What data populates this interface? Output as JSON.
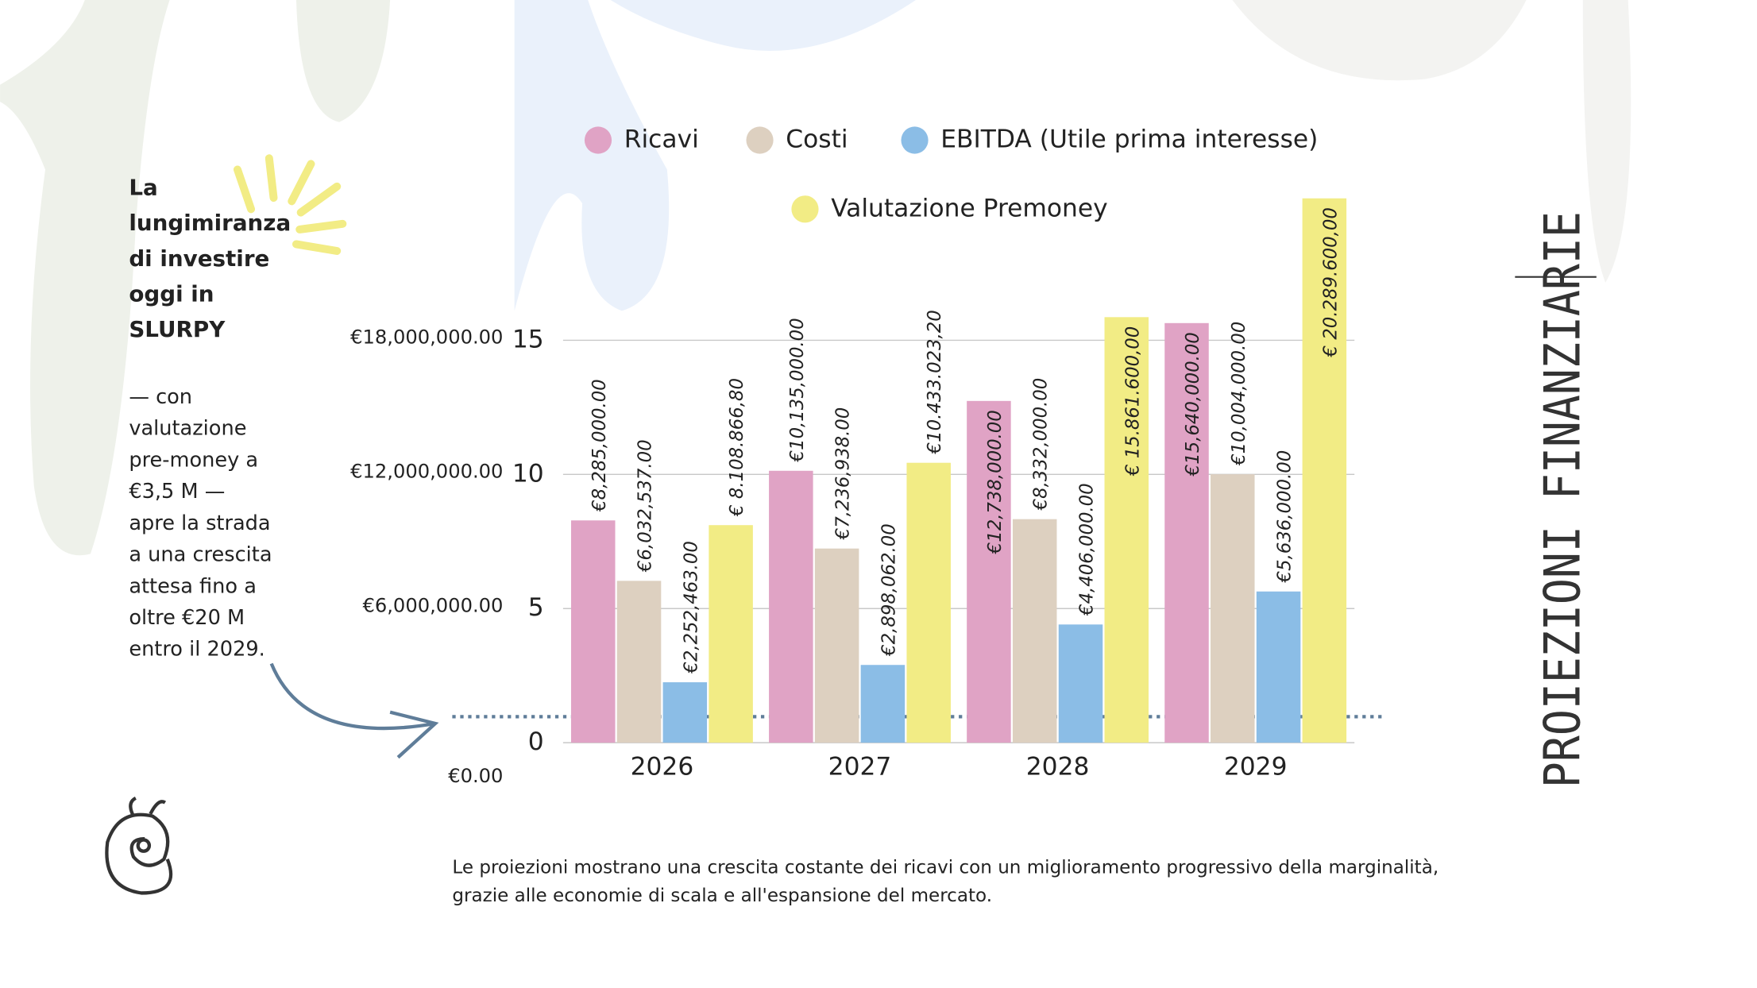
{
  "chart_data": {
    "type": "bar",
    "categories": [
      "2026",
      "2027",
      "2028",
      "2029"
    ],
    "series": [
      {
        "name": "Ricavi",
        "color": "#e0a3c5",
        "values": [
          8.285,
          10.135,
          12.738,
          15.64
        ],
        "value_labels": [
          "€8,285,000.00",
          "€10,135,000.00",
          "€12,738,000.00",
          "€15,640,000.00"
        ]
      },
      {
        "name": "Costi",
        "color": "#ddd0c0",
        "values": [
          6.032537,
          7.236938,
          8.332,
          10.004
        ],
        "value_labels": [
          "€6,032,537.00",
          "€7,236,938.00",
          "€8,332,000.00",
          "€10,004,000.00"
        ]
      },
      {
        "name": "EBITDA (Utile prima interesse)",
        "color": "#8bbde6",
        "values": [
          2.252463,
          2.898062,
          4.406,
          5.636
        ],
        "value_labels": [
          "€2,252,463.00",
          "€2,898,062.00",
          "€4,406,000.00",
          "€5,636,000.00"
        ]
      },
      {
        "name": "Valutazione Premoney",
        "color": "#f2ec85",
        "values": [
          8.1088668,
          10.4330232,
          15.8616,
          20.2896
        ],
        "value_labels": [
          "€ 8.108.866,80",
          "€10.433.023,20",
          "€ 15.861.600,00",
          "€ 20.289.600,00"
        ]
      }
    ],
    "ylim": [
      0,
      15
    ],
    "yticks": [
      0,
      5,
      10,
      15
    ],
    "y2lim": [
      0,
      18000000
    ],
    "y2ticks": [
      {
        "value": 0,
        "label": "€0.00"
      },
      {
        "value": 6000000,
        "label": "€6,000,000.00"
      },
      {
        "value": 12000000,
        "label": "€12,000,000.00"
      },
      {
        "value": 18000000,
        "label": "€18,000,000.00"
      }
    ],
    "grid": true
  },
  "aside": {
    "heading": [
      "La",
      "lungimiranza",
      "di investire",
      "oggi in",
      "SLURPY"
    ],
    "body": [
      "— con",
      "valutazione",
      "pre-money a",
      "€3,5 M —",
      "apre la strada",
      "a una crescita",
      "attesa fino a",
      "oltre €20 M",
      "entro il 2029."
    ]
  },
  "caption": [
    "Le proiezioni mostrano una crescita costante dei ricavi con un miglioramento progressivo della marginalità,",
    "grazie alle economie di scala e all'espansione del mercato."
  ],
  "side_title": "PROIEZIONI FINANZIARIE"
}
